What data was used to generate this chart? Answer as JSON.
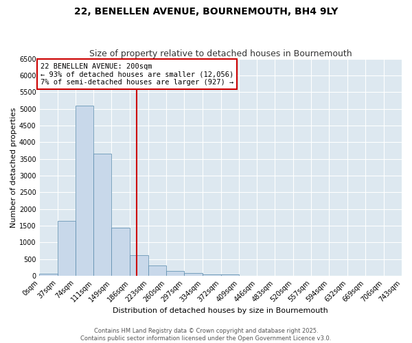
{
  "title": "22, BENELLEN AVENUE, BOURNEMOUTH, BH4 9LY",
  "subtitle": "Size of property relative to detached houses in Bournemouth",
  "xlabel": "Distribution of detached houses by size in Bournemouth",
  "ylabel": "Number of detached properties",
  "bar_values": [
    55,
    1650,
    5100,
    3650,
    1430,
    620,
    310,
    140,
    80,
    50,
    40,
    0,
    0,
    0,
    0,
    0,
    0,
    0,
    0,
    0
  ],
  "bin_edges": [
    0,
    37,
    74,
    111,
    148,
    186,
    223,
    260,
    297,
    334,
    372,
    409,
    446,
    483,
    520,
    557,
    594,
    632,
    669,
    706,
    743
  ],
  "tick_labels": [
    "0sqm",
    "37sqm",
    "74sqm",
    "111sqm",
    "149sqm",
    "186sqm",
    "223sqm",
    "260sqm",
    "297sqm",
    "334sqm",
    "372sqm",
    "409sqm",
    "446sqm",
    "483sqm",
    "520sqm",
    "557sqm",
    "594sqm",
    "632sqm",
    "669sqm",
    "706sqm",
    "743sqm"
  ],
  "bar_color": "#c8d8ea",
  "bar_edge_color": "#5588aa",
  "vline_x": 200,
  "vline_color": "#cc0000",
  "ylim": [
    0,
    6500
  ],
  "yticks": [
    0,
    500,
    1000,
    1500,
    2000,
    2500,
    3000,
    3500,
    4000,
    4500,
    5000,
    5500,
    6000,
    6500
  ],
  "annotation_text": "22 BENELLEN AVENUE: 200sqm\n← 93% of detached houses are smaller (12,056)\n7% of semi-detached houses are larger (927) →",
  "annotation_box_facecolor": "#ffffff",
  "annotation_box_edgecolor": "#cc0000",
  "footer_line1": "Contains HM Land Registry data © Crown copyright and database right 2025.",
  "footer_line2": "Contains public sector information licensed under the Open Government Licence v3.0.",
  "fig_facecolor": "#ffffff",
  "ax_facecolor": "#dde8f0",
  "grid_color": "#ffffff",
  "title_fontsize": 10,
  "subtitle_fontsize": 9,
  "tick_fontsize": 7,
  "ylabel_fontsize": 8,
  "xlabel_fontsize": 8,
  "footer_fontsize": 6
}
